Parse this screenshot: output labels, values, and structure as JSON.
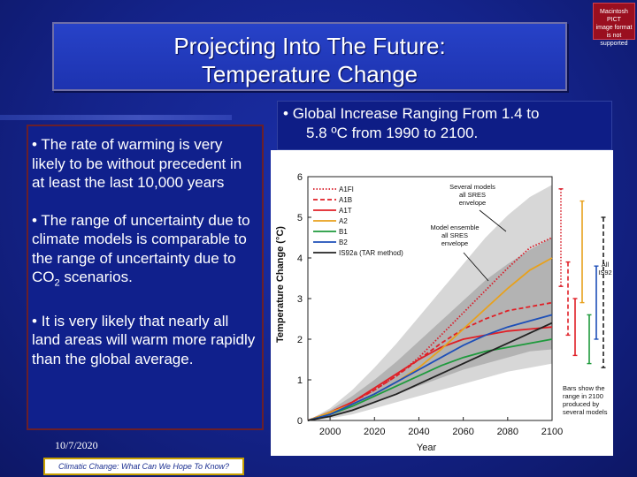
{
  "slide": {
    "title_line1": "Projecting Into The Future:",
    "title_line2": "Temperature Change",
    "pict_badge": [
      "Macintosh PICT",
      "image format",
      "is not supported"
    ]
  },
  "left_bullets": [
    {
      "marker": "•",
      "text": "The rate of warming is very likely to be without precedent in at least the last 10,000 years"
    },
    {
      "marker": "•",
      "text": "The range of uncertainty due to climate models is comparable to the range of uncertainty due to CO"
    },
    {
      "marker": "•",
      "text": "It is very likely that nearly all land areas will warm more rapidly than the global average."
    }
  ],
  "left_bullet2_sub": "2",
  "left_bullet2_tail": " scenarios.",
  "right_bullet": {
    "marker": "•",
    "line1": "Global Increase Ranging From 1.4 to",
    "line2": "5.8 ºC from 1990 to 2100."
  },
  "footer": {
    "date": "10/7/2020",
    "caption": "Climatic Change: What Can We Hope To Know?"
  },
  "chart_data": {
    "type": "line",
    "xlabel": "Year",
    "ylabel": "Temperature Change (°C)",
    "xlim": [
      1990,
      2100
    ],
    "ylim": [
      0,
      6
    ],
    "xticks": [
      2000,
      2020,
      2040,
      2060,
      2080,
      2100
    ],
    "yticks": [
      0,
      1,
      2,
      3,
      4,
      5,
      6
    ],
    "x": [
      1990,
      2000,
      2010,
      2020,
      2030,
      2040,
      2050,
      2060,
      2070,
      2080,
      2090,
      2100
    ],
    "series": [
      {
        "name": "A1FI",
        "color": "#d81e2a",
        "dash": "dotted",
        "values": [
          0,
          0.2,
          0.45,
          0.75,
          1.1,
          1.55,
          2.1,
          2.65,
          3.2,
          3.75,
          4.25,
          4.5
        ]
      },
      {
        "name": "A1B",
        "color": "#e01f26",
        "dash": "dashed",
        "values": [
          0,
          0.2,
          0.45,
          0.75,
          1.1,
          1.5,
          1.9,
          2.25,
          2.5,
          2.7,
          2.8,
          2.9
        ]
      },
      {
        "name": "A1T",
        "color": "#e01f26",
        "dash": "solid",
        "values": [
          0,
          0.2,
          0.45,
          0.8,
          1.15,
          1.5,
          1.8,
          2.0,
          2.1,
          2.2,
          2.25,
          2.3
        ]
      },
      {
        "name": "A2",
        "color": "#e8a11c",
        "dash": "solid",
        "values": [
          0,
          0.2,
          0.4,
          0.65,
          0.95,
          1.3,
          1.75,
          2.25,
          2.75,
          3.25,
          3.7,
          4.0
        ]
      },
      {
        "name": "B1",
        "color": "#1e9a3c",
        "dash": "solid",
        "values": [
          0,
          0.15,
          0.35,
          0.6,
          0.85,
          1.1,
          1.35,
          1.55,
          1.7,
          1.8,
          1.9,
          2.0
        ]
      },
      {
        "name": "B2",
        "color": "#1d4fb8",
        "dash": "solid",
        "values": [
          0,
          0.15,
          0.4,
          0.65,
          0.95,
          1.25,
          1.55,
          1.85,
          2.1,
          2.3,
          2.45,
          2.6
        ]
      },
      {
        "name": "IS92a (TAR method)",
        "color": "#222222",
        "dash": "solid",
        "values": [
          0,
          0.1,
          0.25,
          0.45,
          0.65,
          0.9,
          1.15,
          1.4,
          1.65,
          1.9,
          2.15,
          2.4
        ]
      }
    ],
    "envelopes": [
      {
        "name": "Several models all SRES envelope",
        "color": "#d7d7d7",
        "lower": [
          0,
          0.05,
          0.15,
          0.3,
          0.45,
          0.6,
          0.75,
          0.9,
          1.05,
          1.2,
          1.3,
          1.4
        ],
        "upper": [
          0,
          0.3,
          0.75,
          1.3,
          1.9,
          2.55,
          3.2,
          3.85,
          4.5,
          5.05,
          5.5,
          5.8
        ]
      },
      {
        "name": "Model ensemble all SRES envelope",
        "color": "#b3b3b3",
        "lower": [
          0,
          0.1,
          0.25,
          0.45,
          0.65,
          0.85,
          1.05,
          1.25,
          1.4,
          1.55,
          1.7,
          1.75
        ],
        "upper": [
          0,
          0.25,
          0.6,
          1.0,
          1.45,
          1.95,
          2.45,
          2.95,
          3.45,
          3.85,
          4.2,
          4.5
        ]
      }
    ],
    "annotations": {
      "several_models": [
        "Several models",
        "all SRES",
        "envelope"
      ],
      "model_ensemble": [
        "Model ensemble",
        "all SRES",
        "envelope"
      ],
      "all_is92": [
        "All",
        "IS92"
      ],
      "bars_note": [
        "Bars show the",
        "range in 2100",
        "produced by",
        "several models"
      ]
    },
    "range_bars_2100": [
      {
        "name": "A1FI",
        "color": "#d81e2a",
        "low": 3.3,
        "high": 5.7,
        "dash": "dotted"
      },
      {
        "name": "A1B",
        "color": "#e01f26",
        "low": 2.1,
        "high": 3.9,
        "dash": "dashed"
      },
      {
        "name": "A1T",
        "color": "#e01f26",
        "low": 1.6,
        "high": 3.0,
        "dash": "solid"
      },
      {
        "name": "A2",
        "color": "#e8a11c",
        "low": 2.9,
        "high": 5.4,
        "dash": "solid"
      },
      {
        "name": "B1",
        "color": "#1e9a3c",
        "low": 1.4,
        "high": 2.6,
        "dash": "solid"
      },
      {
        "name": "B2",
        "color": "#1d4fb8",
        "low": 2.0,
        "high": 3.8,
        "dash": "solid"
      },
      {
        "name": "All IS92",
        "color": "#222222",
        "low": 1.3,
        "high": 5.0,
        "dash": "dashed"
      }
    ]
  }
}
